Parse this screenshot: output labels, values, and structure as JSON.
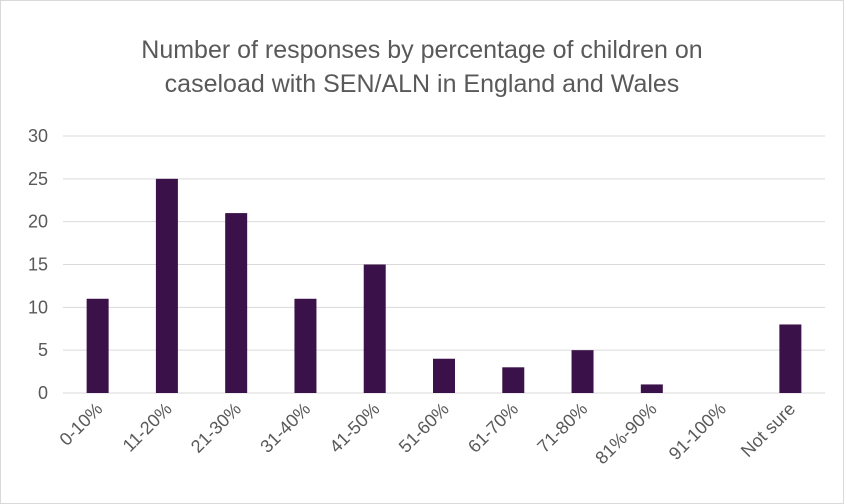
{
  "chart_data": {
    "type": "bar",
    "title_lines": [
      "Number of responses by percentage of children on",
      "caseload with SEN/ALN in England and Wales"
    ],
    "categories": [
      "0-10%",
      "11-20%",
      "21-30%",
      "31-40%",
      "41-50%",
      "51-60%",
      "61-70%",
      "71-80%",
      "81%-90%",
      "91-100%",
      "Not sure"
    ],
    "values": [
      11,
      25,
      21,
      11,
      15,
      4,
      3,
      5,
      1,
      0,
      8
    ],
    "ylim": [
      0,
      30
    ],
    "yticks": [
      0,
      5,
      10,
      15,
      20,
      25,
      30
    ],
    "grid": true,
    "bar_color": "#3a1249",
    "grid_color": "#d9d9d9",
    "text_color": "#595959"
  }
}
